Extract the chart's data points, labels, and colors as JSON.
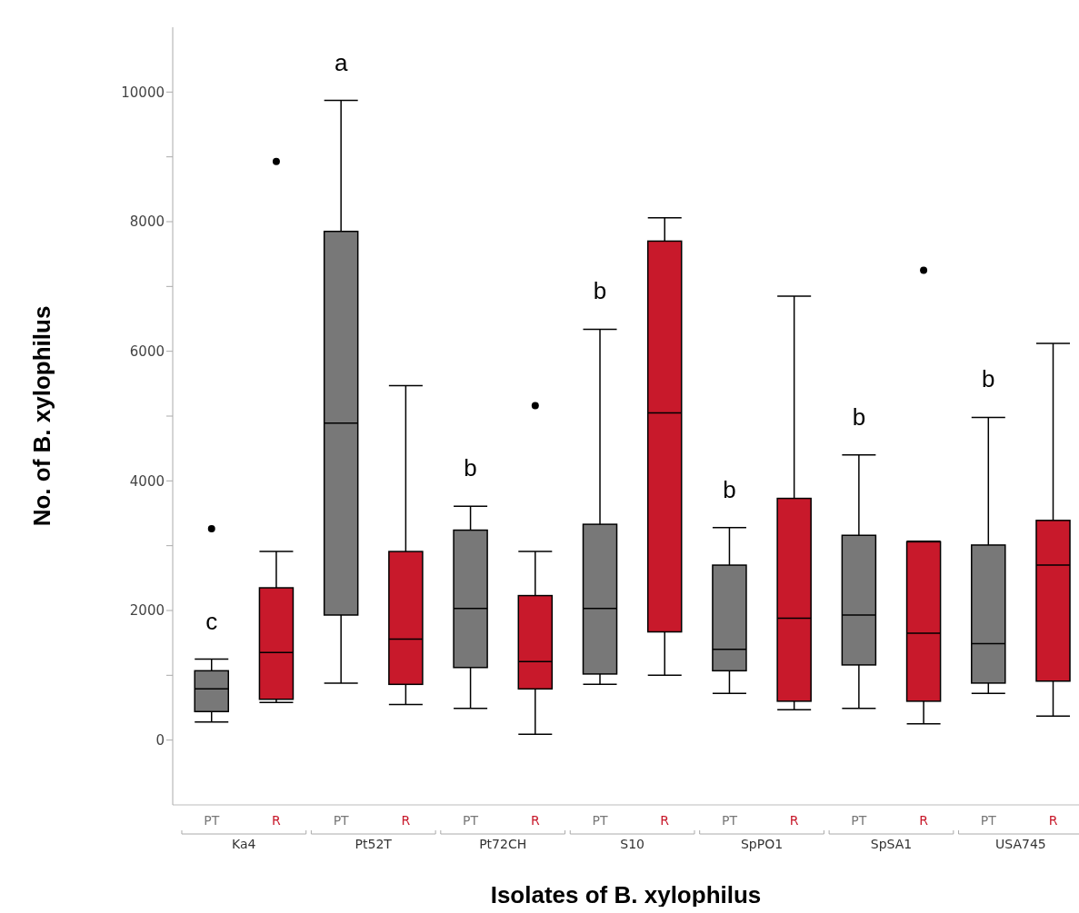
{
  "chart_data": {
    "type": "box",
    "xlabel": "Isolates of B. xylophilus",
    "ylabel": "No. of B.  xylophilus",
    "categories": [
      "Ka4",
      "Pt52T",
      "Pt72CH",
      "S10",
      "SpPO1",
      "SpSA1",
      "USA745"
    ],
    "series": [
      {
        "name": "PT",
        "color": "#787878",
        "boxes": [
          {
            "low": 280,
            "q1": 440,
            "median": 790,
            "q3": 1070,
            "high": 1250,
            "outliers": [
              3260
            ]
          },
          {
            "low": 880,
            "q1": 1930,
            "median": 4890,
            "q3": 7850,
            "high": 9870
          },
          {
            "low": 490,
            "q1": 1120,
            "median": 2030,
            "q3": 3240,
            "high": 3610
          },
          {
            "low": 860,
            "q1": 1020,
            "median": 2030,
            "q3": 3330,
            "high": 6340
          },
          {
            "low": 720,
            "q1": 1070,
            "median": 1400,
            "q3": 2700,
            "high": 3280
          },
          {
            "low": 490,
            "q1": 1160,
            "median": 1930,
            "q3": 3160,
            "high": 4400
          },
          {
            "low": 720,
            "q1": 880,
            "median": 1490,
            "q3": 3010,
            "high": 4980
          }
        ]
      },
      {
        "name": "R",
        "color": "#c8192b",
        "boxes": [
          {
            "low": 580,
            "q1": 630,
            "median": 1350,
            "q3": 2350,
            "high": 2910,
            "outliers": [
              8930
            ]
          },
          {
            "low": 550,
            "q1": 860,
            "median": 1560,
            "q3": 2910,
            "high": 5470
          },
          {
            "low": 90,
            "q1": 790,
            "median": 1210,
            "q3": 2230,
            "high": 2910,
            "outliers": [
              5160
            ]
          },
          {
            "low": 1000,
            "q1": 1670,
            "median": 5050,
            "q3": 7700,
            "high": 8060
          },
          {
            "low": 470,
            "q1": 600,
            "median": 1880,
            "q3": 3730,
            "high": 6850
          },
          {
            "low": 250,
            "q1": 600,
            "median": 1650,
            "q3": 3060,
            "high": 3070,
            "outliers": [
              7250
            ]
          },
          {
            "low": 370,
            "q1": 910,
            "median": 2700,
            "q3": 3390,
            "high": 6120
          }
        ]
      }
    ],
    "ylim": [
      -1000,
      11000
    ],
    "yticks": [
      0,
      {
        "value": 1000,
        "label": null
      },
      2000,
      {
        "value": 3000,
        "label": null
      },
      4000,
      {
        "value": 5000,
        "label": null
      },
      6000,
      {
        "value": 7000,
        "label": null
      },
      8000,
      {
        "value": 9000,
        "label": null
      },
      10000
    ],
    "annotations": [
      "c",
      "a",
      "b",
      "b",
      "b",
      "b",
      "b"
    ]
  }
}
